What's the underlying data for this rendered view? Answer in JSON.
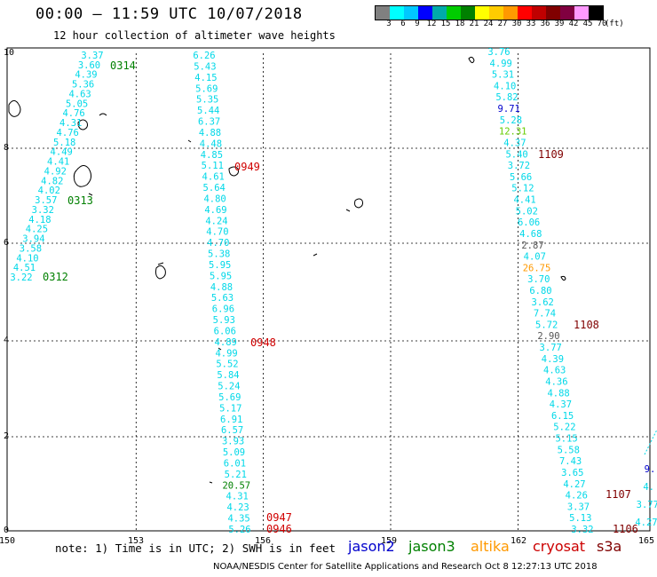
{
  "header": {
    "title": "00:00 – 11:59 UTC 10/07/2018",
    "subtitle": "12 hour collection of altimeter wave heights"
  },
  "colorbar": {
    "swatches": [
      "#808080",
      "#00ffff",
      "#00c8ff",
      "#0000ff",
      "#00aaaa",
      "#00cc00",
      "#008000",
      "#ffff00",
      "#ffcc00",
      "#ff9900",
      "#ff0000",
      "#c00000",
      "#800000",
      "#800040",
      "#ff99ff",
      "#000000"
    ],
    "labels": [
      "3",
      "6",
      "9",
      "12",
      "15",
      "18",
      "21",
      "24",
      "27",
      "30",
      "33",
      "36",
      "39",
      "42",
      "45",
      "70",
      "(ft)"
    ]
  },
  "map": {
    "x_ticks": [
      "150",
      "153",
      "156",
      "159",
      "162",
      "165"
    ],
    "y_ticks": [
      "0",
      "2",
      "4",
      "6",
      "8",
      "10"
    ]
  },
  "colors": {
    "cyan": "#00d8e8",
    "blue": "#0000cc",
    "green": "#008000",
    "red": "#d00000",
    "maroon": "#800000",
    "lime": "#3aa010",
    "orange": "#ff9900",
    "yellowgreen": "#66cc00",
    "grey": "#555555"
  },
  "tracks": [
    {
      "name": "track-west",
      "values": [
        "3.37",
        "3.60",
        "4.39",
        "5.36",
        "4.63",
        "5.05",
        "4.76",
        "4.31",
        "4.76",
        "5.18",
        "4.49",
        "4.41",
        "4.92",
        "4.82",
        "4.02",
        "3.57",
        "3.32",
        "4.18",
        "4.25",
        "3.94",
        "3.58",
        "4.10",
        "4.51",
        "3.22"
      ],
      "colors": [
        "cyan",
        "cyan",
        "cyan",
        "cyan",
        "cyan",
        "cyan",
        "cyan",
        "cyan",
        "cyan",
        "cyan",
        "cyan",
        "cyan",
        "cyan",
        "cyan",
        "cyan",
        "cyan",
        "cyan",
        "cyan",
        "cyan",
        "cyan",
        "cyan",
        "cyan",
        "cyan",
        "cyan"
      ]
    },
    {
      "name": "track-middle",
      "values": [
        "6.26",
        "5.43",
        "4.15",
        "5.69",
        "5.35",
        "5.44",
        "6.37",
        "4.88",
        "4.48",
        "4.85",
        "5.11",
        "4.61",
        "5.64",
        "4.80",
        "4.69",
        "4.24",
        "4.70",
        "4.70",
        "5.38",
        "5.95",
        "5.95",
        "4.88",
        "5.63",
        "6.96",
        "5.93",
        "6.06",
        "4.89",
        "4.99",
        "5.52",
        "5.84",
        "5.24",
        "5.69",
        "5.17",
        "6.91",
        "6.57",
        "3.93",
        "5.09",
        "6.01",
        "5.21",
        "20.57",
        "4.31",
        "4.23",
        "4.35",
        "5.26"
      ],
      "colors": [
        "cyan",
        "cyan",
        "cyan",
        "cyan",
        "cyan",
        "cyan",
        "cyan",
        "cyan",
        "cyan",
        "cyan",
        "cyan",
        "cyan",
        "cyan",
        "cyan",
        "cyan",
        "cyan",
        "cyan",
        "cyan",
        "cyan",
        "cyan",
        "cyan",
        "cyan",
        "cyan",
        "cyan",
        "cyan",
        "cyan",
        "cyan",
        "cyan",
        "cyan",
        "cyan",
        "cyan",
        "cyan",
        "cyan",
        "cyan",
        "cyan",
        "cyan",
        "cyan",
        "cyan",
        "cyan",
        "green",
        "cyan",
        "cyan",
        "cyan",
        "cyan"
      ]
    },
    {
      "name": "track-east",
      "values": [
        "3.76",
        "4.99",
        "5.31",
        "4.10",
        "5.82",
        "9.71",
        "5.28",
        "12.31",
        "4.37",
        "5.40",
        "3.72",
        "5.66",
        "5.12",
        "4.41",
        "5.02",
        "6.06",
        "4.68",
        "2.87",
        "4.07",
        "26.75",
        "3.70",
        "6.80",
        "3.62",
        "7.74",
        "5.72",
        "2.90",
        "3.77",
        "4.39",
        "4.63",
        "4.36",
        "4.88",
        "4.37",
        "6.15",
        "5.22",
        "5.15",
        "5.58",
        "7.43",
        "3.65",
        "4.27",
        "4.26",
        "3.37",
        "5.13",
        "3.32"
      ],
      "colors": [
        "cyan",
        "cyan",
        "cyan",
        "cyan",
        "cyan",
        "blue",
        "cyan",
        "yellowgreen",
        "cyan",
        "cyan",
        "cyan",
        "cyan",
        "cyan",
        "cyan",
        "cyan",
        "cyan",
        "cyan",
        "grey",
        "cyan",
        "orange",
        "cyan",
        "cyan",
        "cyan",
        "cyan",
        "cyan",
        "grey",
        "cyan",
        "cyan",
        "cyan",
        "cyan",
        "cyan",
        "cyan",
        "cyan",
        "cyan",
        "cyan",
        "cyan",
        "cyan",
        "cyan",
        "cyan",
        "cyan",
        "cyan",
        "cyan",
        "cyan"
      ]
    },
    {
      "name": "track-edge",
      "values": [
        "9.",
        "4.",
        "3.77",
        "4.27"
      ],
      "colors": [
        "blue",
        "cyan",
        "cyan",
        "cyan"
      ]
    }
  ],
  "time_labels": [
    {
      "text": "0314",
      "color": "green"
    },
    {
      "text": "0313",
      "color": "green"
    },
    {
      "text": "0312",
      "color": "green"
    },
    {
      "text": "0949",
      "color": "red"
    },
    {
      "text": "0948",
      "color": "red"
    },
    {
      "text": "0947",
      "color": "red"
    },
    {
      "text": "0946",
      "color": "red"
    },
    {
      "text": "1109",
      "color": "maroon"
    },
    {
      "text": "1108",
      "color": "maroon"
    },
    {
      "text": "1107",
      "color": "maroon"
    },
    {
      "text": "1106",
      "color": "maroon"
    }
  ],
  "footer": {
    "note": "note: 1) Time is in UTC; 2) SWH is in feet",
    "legend": [
      {
        "label": "jason2",
        "color": "#0000cc"
      },
      {
        "label": "jason3",
        "color": "#008000"
      },
      {
        "label": "altika",
        "color": "#ff9900"
      },
      {
        "label": "cryosat",
        "color": "#cc0000"
      },
      {
        "label": "s3a",
        "color": "#800000"
      }
    ],
    "credit": "NOAA/NESDIS Center for Satellite Applications and Research    Oct  8 12:27:13 UTC 2018"
  }
}
